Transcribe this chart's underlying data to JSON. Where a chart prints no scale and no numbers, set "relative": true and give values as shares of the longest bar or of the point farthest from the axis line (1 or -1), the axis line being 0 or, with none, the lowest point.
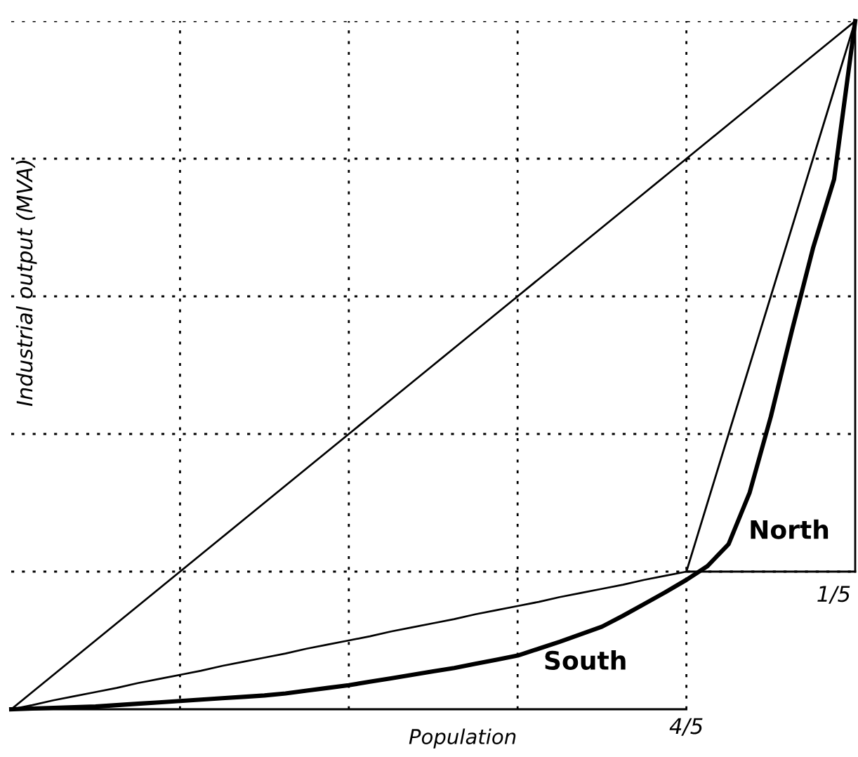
{
  "chart_data": {
    "type": "line",
    "xlabel": "Population",
    "ylabel": "Industrial output (MVA)",
    "relative": true,
    "grid": true,
    "marker": "none",
    "line_style": "solid",
    "categories": [
      null,
      null,
      null,
      null,
      null,
      null,
      null,
      null,
      null,
      null,
      null,
      null,
      null,
      null,
      null,
      null,
      null,
      null,
      null,
      null,
      null,
      null,
      null,
      null,
      null,
      null,
      null,
      null,
      null,
      null,
      null,
      null,
      null,
      null,
      null,
      null,
      null,
      null,
      null,
      null,
      null
    ],
    "series": [
      {
        "color": "#000000",
        "values": [
          0,
          0.025,
          0.05,
          0.075,
          0.1,
          0.125,
          0.15,
          0.175,
          0.2,
          0.225,
          0.25,
          0.275,
          0.3,
          0.325,
          0.35,
          0.375,
          0.4,
          0.425,
          0.45,
          0.475,
          0.5,
          0.525,
          0.55,
          0.575,
          0.6,
          0.625,
          0.65,
          0.675,
          0.7,
          0.725,
          0.75,
          0.775,
          0.8,
          0.825,
          0.85,
          0.875,
          0.9,
          0.925,
          0.95,
          0.975,
          1
        ]
      },
      {
        "color": "#000000",
        "values": [
          0,
          0.001,
          0.002,
          0.003,
          0.004,
          0.006,
          0.008,
          0.01,
          0.012,
          0.014,
          0.016,
          0.018,
          0.02,
          0.023,
          0.027,
          0.031,
          0.035,
          0.04,
          0.045,
          0.05,
          0.055,
          0.06,
          0.066,
          0.072,
          0.078,
          0.088,
          0.098,
          0.109,
          0.12,
          0.136,
          0.153,
          0.17,
          0.188,
          0.208,
          0.24,
          0.315,
          0.425,
          0.55,
          0.67,
          0.77,
          1
        ]
      },
      {
        "color": "#000000",
        "values": [
          0,
          0.006,
          0.013,
          0.019,
          0.025,
          0.031,
          0.038,
          0.044,
          0.05,
          0.056,
          0.063,
          0.069,
          0.075,
          0.081,
          0.088,
          0.094,
          0.1,
          0.106,
          0.113,
          0.119,
          0.125,
          0.131,
          0.138,
          0.144,
          0.15,
          0.156,
          0.163,
          0.169,
          0.175,
          0.181,
          0.188,
          0.194,
          0.2,
          0.3,
          0.4,
          0.5,
          0.6,
          0.7,
          0.8,
          0.9,
          1
        ]
      },
      {
        "color": "#000000",
        "values": [
          0,
          0,
          0,
          0,
          0,
          0,
          0,
          0,
          0,
          0,
          0,
          0,
          0,
          0,
          0,
          0,
          0,
          0,
          0,
          0,
          0,
          0,
          0,
          0,
          0,
          0,
          0,
          0,
          0,
          0,
          0,
          0,
          0,
          null,
          null,
          null,
          null,
          null,
          null,
          null,
          null
        ]
      },
      {
        "color": "#000000",
        "values": [
          null,
          null,
          null,
          null,
          null,
          null,
          null,
          null,
          null,
          null,
          null,
          null,
          null,
          null,
          null,
          null,
          null,
          null,
          null,
          null,
          null,
          null,
          null,
          null,
          null,
          null,
          null,
          null,
          null,
          null,
          null,
          null,
          0.2,
          0.2,
          0.2,
          0.2,
          0.2,
          0.2,
          0.2,
          0.2,
          0.2
        ]
      }
    ],
    "annotations": [
      "North",
      "South",
      "1/5",
      "4/5"
    ]
  }
}
